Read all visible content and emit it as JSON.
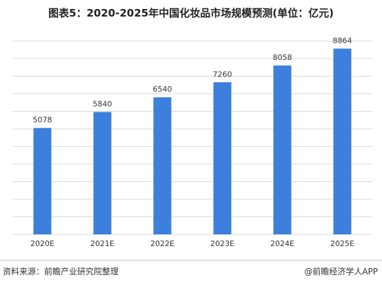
{
  "title": "图表5：2020-2025年中国化妆品市场规模预测(单位：亿元)",
  "footer": {
    "source": "资料来源：前瞻产业研究院整理",
    "brand": "@前瞻经济学人APP"
  },
  "colors": {
    "bar": "#3d7fdc",
    "grid": "#d9d9d9",
    "text": "#333333"
  },
  "chart_data": {
    "type": "bar",
    "categories": [
      "2020E",
      "2021E",
      "2022E",
      "2023E",
      "2024E",
      "2025E"
    ],
    "values": [
      5078,
      5840,
      6540,
      7260,
      8058,
      8864
    ],
    "ylim": [
      0,
      10000
    ],
    "grid": true
  }
}
